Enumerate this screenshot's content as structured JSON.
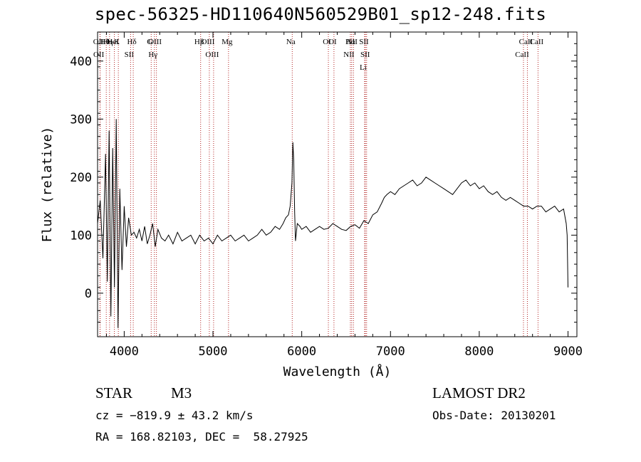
{
  "title": "spec-56325-HD110640N560529B01_sp12-248.fits",
  "info": {
    "class": "STAR",
    "subclass": "M3",
    "survey": "LAMOST DR2",
    "cz": "cz = −819.9 ± 43.2 km/s",
    "obs_date": "Obs-Date: 20130201",
    "coords": "RA = 168.82103, DEC =  58.27925"
  },
  "colors": {
    "line": "#000000",
    "marker": "#b22222"
  },
  "chart_data": {
    "type": "line",
    "title": "spec-56325-HD110640N560529B01_sp12-248.fits",
    "xlabel": "Wavelength (Å)",
    "ylabel": "Flux (relative)",
    "xlim": [
      3700,
      9100
    ],
    "ylim": [
      -75,
      450
    ],
    "x_ticks": [
      4000,
      5000,
      6000,
      7000,
      8000,
      9000
    ],
    "y_ticks": [
      0,
      100,
      200,
      300,
      400
    ],
    "series": [
      {
        "name": "flux",
        "x": [
          3700,
          3730,
          3760,
          3790,
          3810,
          3830,
          3850,
          3870,
          3890,
          3910,
          3930,
          3950,
          3975,
          4000,
          4025,
          4050,
          4080,
          4110,
          4140,
          4170,
          4200,
          4230,
          4260,
          4290,
          4320,
          4350,
          4380,
          4420,
          4460,
          4500,
          4550,
          4600,
          4650,
          4700,
          4750,
          4800,
          4850,
          4900,
          4950,
          5000,
          5050,
          5100,
          5150,
          5200,
          5250,
          5300,
          5350,
          5400,
          5450,
          5500,
          5550,
          5600,
          5650,
          5700,
          5750,
          5790,
          5820,
          5850,
          5870,
          5890,
          5900,
          5910,
          5920,
          5930,
          5950,
          5980,
          6000,
          6050,
          6100,
          6150,
          6200,
          6250,
          6300,
          6350,
          6400,
          6450,
          6500,
          6550,
          6600,
          6650,
          6700,
          6750,
          6800,
          6850,
          6900,
          6930,
          6960,
          7000,
          7050,
          7100,
          7150,
          7200,
          7250,
          7300,
          7350,
          7400,
          7450,
          7500,
          7550,
          7600,
          7650,
          7700,
          7750,
          7800,
          7850,
          7900,
          7950,
          8000,
          8050,
          8100,
          8150,
          8200,
          8250,
          8300,
          8350,
          8400,
          8450,
          8500,
          8550,
          8600,
          8650,
          8700,
          8750,
          8800,
          8850,
          8900,
          8950,
          8980,
          8990,
          9000
        ],
        "y": [
          120,
          160,
          60,
          240,
          20,
          280,
          -40,
          250,
          10,
          300,
          -60,
          180,
          40,
          150,
          80,
          130,
          100,
          105,
          95,
          110,
          90,
          115,
          85,
          100,
          120,
          80,
          110,
          95,
          90,
          100,
          85,
          105,
          90,
          95,
          100,
          85,
          100,
          90,
          95,
          85,
          100,
          90,
          95,
          100,
          90,
          95,
          100,
          90,
          95,
          100,
          110,
          100,
          105,
          115,
          110,
          120,
          130,
          135,
          150,
          190,
          260,
          230,
          140,
          90,
          120,
          115,
          110,
          115,
          105,
          110,
          115,
          110,
          112,
          120,
          115,
          110,
          108,
          115,
          118,
          112,
          125,
          120,
          135,
          140,
          155,
          165,
          170,
          175,
          170,
          180,
          185,
          190,
          195,
          185,
          190,
          200,
          195,
          190,
          185,
          180,
          175,
          170,
          180,
          190,
          195,
          185,
          190,
          180,
          185,
          175,
          170,
          175,
          165,
          160,
          165,
          160,
          155,
          150,
          150,
          145,
          150,
          150,
          140,
          145,
          150,
          140,
          145,
          120,
          100,
          10
        ]
      }
    ],
    "lines": [
      {
        "name": "Hθ",
        "wavelength": 3798
      },
      {
        "name": "OII",
        "wavelength": 3727
      },
      {
        "name": "OII",
        "wavelength": 3729
      },
      {
        "name": "HeI",
        "wavelength": 3889
      },
      {
        "name": "Hη",
        "wavelength": 3835
      },
      {
        "name": "K",
        "wavelength": 3934
      },
      {
        "name": "Hδ",
        "wavelength": 4102
      },
      {
        "name": "SII",
        "wavelength": 4072
      },
      {
        "name": "G",
        "wavelength": 4304
      },
      {
        "name": "OIII",
        "wavelength": 4363
      },
      {
        "name": "Hγ",
        "wavelength": 4340
      },
      {
        "name": "Hβ",
        "wavelength": 4861
      },
      {
        "name": "OIII",
        "wavelength": 4959
      },
      {
        "name": "OIII",
        "wavelength": 5007
      },
      {
        "name": "Mg",
        "wavelength": 5175
      },
      {
        "name": "Na",
        "wavelength": 5893
      },
      {
        "name": "OI",
        "wavelength": 6363
      },
      {
        "name": "OI",
        "wavelength": 6300
      },
      {
        "name": "NII",
        "wavelength": 6583
      },
      {
        "name": "Hα",
        "wavelength": 6563
      },
      {
        "name": "NII",
        "wavelength": 6548
      },
      {
        "name": "SII",
        "wavelength": 6717
      },
      {
        "name": "SII",
        "wavelength": 6731
      },
      {
        "name": "Li",
        "wavelength": 6708
      },
      {
        "name": "CaII",
        "wavelength": 8662
      },
      {
        "name": "CaII",
        "wavelength": 8542
      },
      {
        "name": "CaII",
        "wavelength": 8498
      }
    ]
  }
}
